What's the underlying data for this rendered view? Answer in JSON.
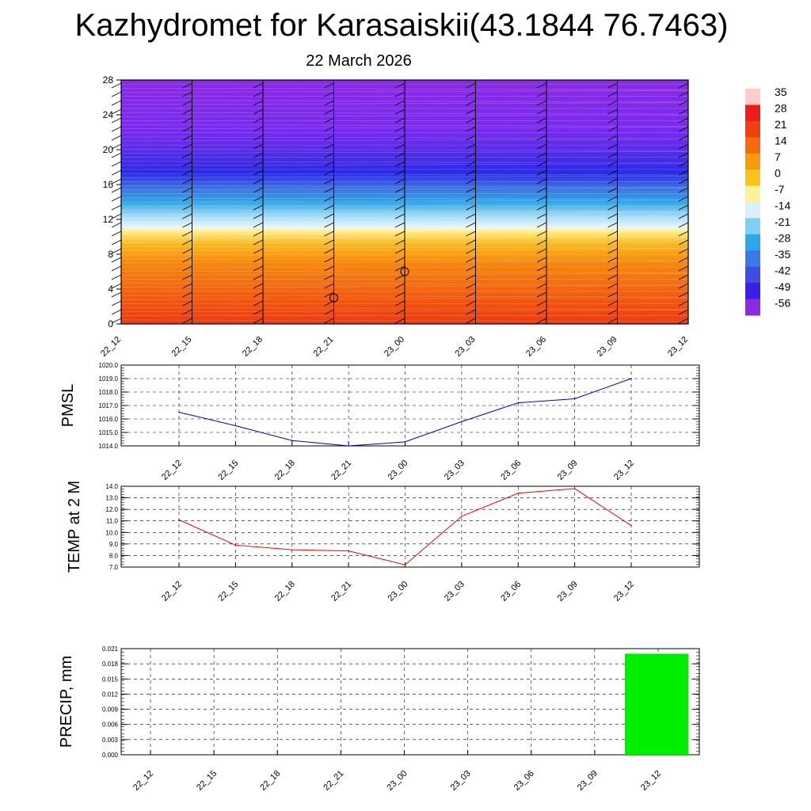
{
  "title": "Kazhydromet for Karasaiskii(43.1844 76.7463)",
  "subtitle": "22 March 2026",
  "colorbar": {
    "labels": [
      "35",
      "28",
      "21",
      "14",
      "7",
      "0",
      "-7",
      "-14",
      "-21",
      "-28",
      "-35",
      "-42",
      "-49",
      "-56"
    ],
    "colors": [
      "#ffcccc",
      "#ee1c1c",
      "#f04010",
      "#f46a0c",
      "#f79a0c",
      "#fbc21a",
      "#fff09a",
      "#d8f0ff",
      "#7fd0f5",
      "#2aa8ea",
      "#3a7ae6",
      "#3f4ee0",
      "#3b1ee8",
      "#8a2be2"
    ]
  },
  "chart_data": [
    {
      "type": "heatmap",
      "name": "upper",
      "x_ticks": [
        "22_12",
        "22_15",
        "22_18",
        "22_21",
        "23_00",
        "23_03",
        "23_06",
        "23_09",
        "23_12"
      ],
      "y_ticks": [
        "0",
        "4",
        "8",
        "12",
        "16",
        "20",
        "24",
        "28"
      ],
      "ylim": [
        0,
        28
      ],
      "markers": [
        {
          "x": "22_21",
          "y": 3
        },
        {
          "x": "23_00",
          "y": 6
        }
      ]
    },
    {
      "type": "line",
      "name": "pmsl",
      "ylabel": "PMSL",
      "categories": [
        "22_12",
        "22_15",
        "22_18",
        "22_21",
        "23_00",
        "23_03",
        "23_06",
        "23_09",
        "23_12"
      ],
      "values": [
        1016.5,
        1015.5,
        1014.4,
        1014.0,
        1014.3,
        1015.8,
        1017.2,
        1017.5,
        1019.0
      ],
      "ylim": [
        1014.0,
        1020.0
      ],
      "y_ticks": [
        "1020.0",
        "1019.0",
        "1018.0",
        "1017.0",
        "1016.0",
        "1015.0",
        "1014.0"
      ],
      "color": "#0000cc",
      "grid": true
    },
    {
      "type": "line",
      "name": "temp",
      "ylabel": "TEMP at 2 M",
      "categories": [
        "22_12",
        "22_15",
        "22_18",
        "22_21",
        "23_00",
        "23_03",
        "23_06",
        "23_09",
        "23_12"
      ],
      "values": [
        11.1,
        8.9,
        8.5,
        8.4,
        7.2,
        11.4,
        13.4,
        13.8,
        10.6
      ],
      "ylim": [
        7.0,
        14.0
      ],
      "y_ticks": [
        "14.0",
        "13.0",
        "12.0",
        "11.0",
        "10.0",
        "9.0",
        "8.0",
        "7.0"
      ],
      "color": "#ee0000",
      "grid": true
    },
    {
      "type": "bar",
      "name": "precip",
      "ylabel": "PRECIP, mm",
      "categories": [
        "22_12",
        "22_15",
        "22_18",
        "22_21",
        "23_00",
        "23_03",
        "23_06",
        "23_09",
        "23_12"
      ],
      "values": [
        0,
        0,
        0,
        0,
        0,
        0,
        0,
        0,
        0.02
      ],
      "ylim": [
        0,
        0.021
      ],
      "y_ticks": [
        "0.021",
        "0.018",
        "0.015",
        "0.012",
        "0.009",
        "0.006",
        "0.003",
        "0.000"
      ],
      "color": "#00ee00",
      "grid": true
    }
  ]
}
